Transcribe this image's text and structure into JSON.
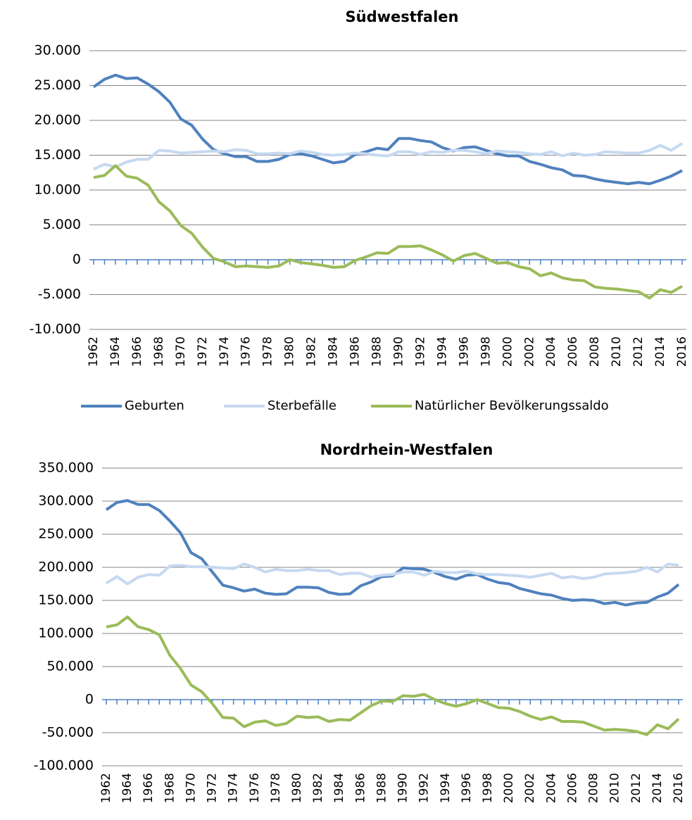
{
  "chart_data": [
    {
      "type": "line",
      "title": "Südwestfalen",
      "legend": "bottom",
      "grid": true,
      "categories": [
        "1962",
        null,
        "1964",
        null,
        "1966",
        null,
        "1968",
        null,
        "1970",
        null,
        "1972",
        null,
        "1974",
        null,
        "1976",
        null,
        "1978",
        null,
        "1980",
        null,
        "1982",
        null,
        "1984",
        null,
        "1986",
        null,
        "1988",
        null,
        "1990",
        null,
        "1992",
        null,
        "1994",
        null,
        "1996",
        null,
        "1998",
        null,
        "2000",
        null,
        "2002",
        null,
        "2004",
        null,
        "2006",
        null,
        "2008",
        null,
        "2010",
        null,
        "2012",
        null,
        "2014",
        null,
        "2016"
      ],
      "ylim": [
        -10000,
        30000
      ],
      "yticks": [
        {
          "value": -10000,
          "label": "-10.000"
        },
        {
          "value": -5000,
          "label": "-5.000"
        },
        0,
        {
          "value": 5000,
          "label": "5.000"
        },
        {
          "value": 10000,
          "label": "10.000"
        },
        {
          "value": 15000,
          "label": "15.000"
        },
        {
          "value": 20000,
          "label": "20.000"
        },
        {
          "value": 25000,
          "label": "25.000"
        },
        {
          "value": 30000,
          "label": "30.000"
        }
      ],
      "series": [
        {
          "name": "Geburten",
          "color": "#4f81bd",
          "values": [
            24800,
            25900,
            26500,
            26000,
            26100,
            25200,
            24100,
            22600,
            20200,
            19300,
            17300,
            15800,
            15200,
            14800,
            14800,
            14100,
            14100,
            14400,
            15100,
            15200,
            14900,
            14400,
            13900,
            14100,
            15100,
            15500,
            16000,
            15800,
            17400,
            17400,
            17100,
            16900,
            16100,
            15600,
            16100,
            16200,
            15700,
            15200,
            14900,
            14900,
            14100,
            13700,
            13200,
            12900,
            12100,
            12000,
            11600,
            11300,
            11100,
            10900,
            11100,
            10900,
            11400,
            12000,
            12800
          ]
        },
        {
          "name": "Sterbefälle",
          "color": "#c6d9f1",
          "values": [
            13000,
            13700,
            13300,
            14000,
            14400,
            14400,
            15700,
            15600,
            15300,
            15400,
            15500,
            15600,
            15500,
            15800,
            15700,
            15200,
            15200,
            15300,
            15200,
            15600,
            15400,
            15100,
            15000,
            15100,
            15300,
            15200,
            15000,
            14900,
            15500,
            15500,
            15100,
            15500,
            15400,
            15700,
            15700,
            15500,
            15200,
            15600,
            15500,
            15400,
            15200,
            15100,
            15500,
            14900,
            15300,
            15000,
            15100,
            15500,
            15400,
            15300,
            15300,
            15700,
            16400,
            15700,
            16700
          ]
        },
        {
          "name": "Natürlicher Bevölkerungssaldo",
          "color": "#9bbb59",
          "values": [
            11800,
            12100,
            13500,
            12000,
            11700,
            10700,
            8300,
            7000,
            4900,
            3800,
            1800,
            200,
            -300,
            -1000,
            -900,
            -1000,
            -1100,
            -900,
            0,
            -400,
            -600,
            -800,
            -1100,
            -1000,
            -100,
            400,
            1000,
            900,
            1900,
            1900,
            2000,
            1400,
            700,
            -200,
            600,
            900,
            200,
            -500,
            -400,
            -1000,
            -1300,
            -2300,
            -1900,
            -2600,
            -2900,
            -3000,
            -3900,
            -4100,
            -4200,
            -4400,
            -4600,
            -5500,
            -4300,
            -4700,
            -3800
          ]
        }
      ]
    },
    {
      "type": "line",
      "title": "Nordrhein-Westfalen",
      "grid": true,
      "categories": [
        "1962",
        null,
        "1964",
        null,
        "1966",
        null,
        "1968",
        null,
        "1970",
        null,
        "1972",
        null,
        "1974",
        null,
        "1976",
        null,
        "1978",
        null,
        "1980",
        null,
        "1982",
        null,
        "1984",
        null,
        "1986",
        null,
        "1988",
        null,
        "1990",
        null,
        "1992",
        null,
        "1994",
        null,
        "1996",
        null,
        "1998",
        null,
        "2000",
        null,
        "2002",
        null,
        "2004",
        null,
        "2006",
        null,
        "2008",
        null,
        "2010",
        null,
        "2012",
        null,
        "2014",
        null,
        "2016"
      ],
      "ylim": [
        -100000,
        350000
      ],
      "yticks": [
        {
          "value": -100000,
          "label": "-100.000"
        },
        {
          "value": -50000,
          "label": "-50.000"
        },
        0,
        {
          "value": 50000,
          "label": "50.000"
        },
        {
          "value": 100000,
          "label": "100.000"
        },
        {
          "value": 150000,
          "label": "150.000"
        },
        {
          "value": 200000,
          "label": "200.000"
        },
        {
          "value": 250000,
          "label": "250.000"
        },
        {
          "value": 300000,
          "label": "300.000"
        },
        {
          "value": 350000,
          "label": "350.000"
        }
      ],
      "series": [
        {
          "color": "#4f81bd",
          "values": [
            287000,
            298000,
            301000,
            295000,
            295000,
            286000,
            270000,
            252000,
            222000,
            213000,
            193000,
            173000,
            169000,
            164000,
            167000,
            161000,
            159000,
            160000,
            170000,
            170000,
            169000,
            162000,
            159000,
            160000,
            172000,
            178000,
            186000,
            187000,
            199000,
            198000,
            197000,
            192000,
            186000,
            182000,
            188000,
            189000,
            182000,
            177000,
            175000,
            168000,
            164000,
            160000,
            158000,
            153000,
            150000,
            151000,
            150000,
            145000,
            147000,
            143000,
            146000,
            147000,
            155000,
            161000,
            174000
          ]
        },
        {
          "color": "#c6d9f1",
          "values": [
            176000,
            186000,
            175000,
            185000,
            189000,
            188000,
            202000,
            203000,
            201000,
            201000,
            200000,
            199000,
            198000,
            205000,
            200000,
            193000,
            197000,
            195000,
            195000,
            197000,
            195000,
            195000,
            189000,
            191000,
            191000,
            185000,
            188000,
            189000,
            193000,
            193000,
            188000,
            194000,
            192000,
            192000,
            194000,
            190000,
            189000,
            189000,
            188000,
            187000,
            185000,
            188000,
            191000,
            184000,
            186000,
            183000,
            185000,
            190000,
            191000,
            192000,
            194000,
            200000,
            193000,
            205000,
            203000
          ]
        },
        {
          "color": "#9bbb59",
          "values": [
            110000,
            113000,
            125000,
            110000,
            106000,
            98000,
            67000,
            47000,
            22000,
            12000,
            -6000,
            -27000,
            -28000,
            -41000,
            -34000,
            -32000,
            -39000,
            -36000,
            -25000,
            -27000,
            -26000,
            -33000,
            -30000,
            -31000,
            -20000,
            -9000,
            -2000,
            -3000,
            6000,
            5000,
            8000,
            0,
            -6000,
            -10000,
            -6000,
            0,
            -6000,
            -12000,
            -13000,
            -18000,
            -25000,
            -30000,
            -26000,
            -33000,
            -33000,
            -34000,
            -40000,
            -46000,
            -45000,
            -46000,
            -48000,
            -53000,
            -38000,
            -44000,
            -29000
          ]
        }
      ]
    }
  ]
}
